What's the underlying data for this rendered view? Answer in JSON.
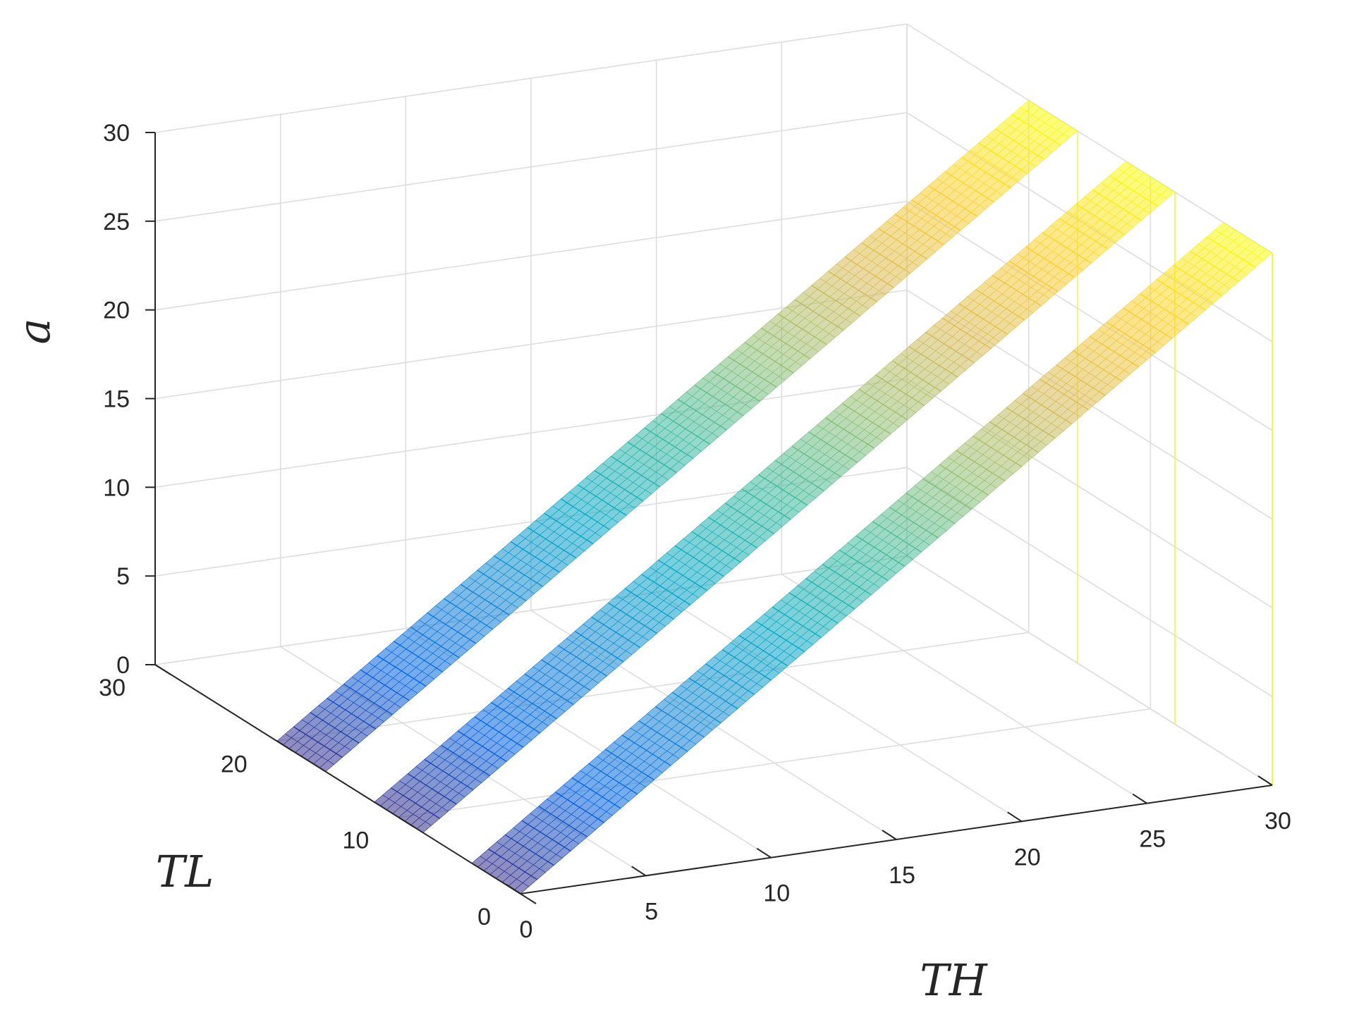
{
  "chart_data": {
    "type": "surface",
    "title": "",
    "xlabel": "TH",
    "ylabel": "TL",
    "zlabel": "a",
    "xlim": [
      0,
      30
    ],
    "ylim": [
      0,
      30
    ],
    "zlim": [
      0,
      30
    ],
    "x_ticks": [
      "0",
      "5",
      "10",
      "15",
      "20",
      "25",
      "30"
    ],
    "y_ticks": [
      "0",
      "10",
      "20",
      "30"
    ],
    "z_ticks": [
      "0",
      "5",
      "10",
      "15",
      "20",
      "25",
      "30"
    ],
    "grid": true,
    "colormap": "parula",
    "colormap_colors": [
      "#352a87",
      "#0363e1",
      "#1485d4",
      "#06a7c6",
      "#38b99e",
      "#92bf73",
      "#d9ba56",
      "#fcce2e",
      "#f9fb0e"
    ],
    "series": [
      {
        "surface": "a = TH (TH ≥ TL)",
        "x": [
          0,
          5,
          10,
          15,
          20,
          25,
          30
        ],
        "z_along_x": [
          0,
          5,
          10,
          15,
          20,
          25,
          30
        ],
        "y_range": [
          0,
          4
        ]
      },
      {
        "surface": "a = TH (TH ≥ TL)",
        "x": [
          0,
          5,
          10,
          15,
          20,
          25,
          30
        ],
        "z_along_x": [
          0,
          5,
          10,
          15,
          20,
          25,
          30
        ],
        "y_range": [
          8,
          12
        ]
      },
      {
        "surface": "a = TH (TH ≥ TL)",
        "x": [
          0,
          5,
          10,
          15,
          20,
          25,
          30
        ],
        "z_along_x": [
          0,
          5,
          10,
          15,
          20,
          25,
          30
        ],
        "y_range": [
          16,
          20
        ]
      }
    ]
  }
}
